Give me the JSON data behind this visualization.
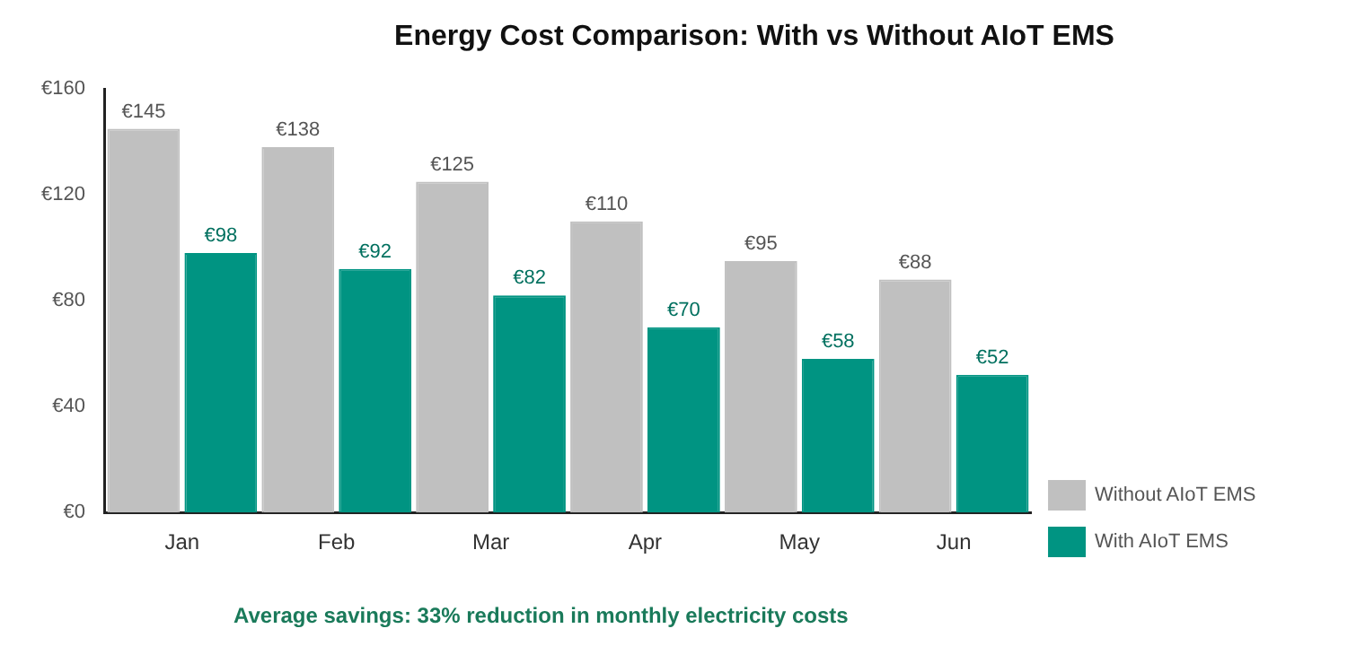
{
  "chart_data": {
    "type": "bar",
    "title": "Energy Cost Comparison: With vs Without AIoT EMS",
    "categories": [
      "Jan",
      "Feb",
      "Mar",
      "Apr",
      "May",
      "Jun"
    ],
    "series": [
      {
        "name": "Without AIoT EMS",
        "color": "#c0c0c0",
        "values": [
          145,
          138,
          125,
          110,
          95,
          88
        ],
        "value_labels": [
          "€145",
          "€138",
          "€125",
          "€110",
          "€95",
          "€88"
        ]
      },
      {
        "name": "With AIoT EMS",
        "color": "#009482",
        "values": [
          98,
          92,
          82,
          70,
          58,
          52
        ],
        "value_labels": [
          "€98",
          "€92",
          "€82",
          "€70",
          "€58",
          "€52"
        ]
      }
    ],
    "ylim": [
      0,
      160
    ],
    "yticks": [
      {
        "value": 0,
        "label": "€0"
      },
      {
        "value": 40,
        "label": "€40"
      },
      {
        "value": 80,
        "label": "€80"
      },
      {
        "value": 120,
        "label": "€120"
      },
      {
        "value": 160,
        "label": "€160"
      }
    ],
    "grid": false,
    "legend": "bottom right",
    "annotations": [
      "Average savings: 33% reduction in monthly electricity costs"
    ]
  }
}
